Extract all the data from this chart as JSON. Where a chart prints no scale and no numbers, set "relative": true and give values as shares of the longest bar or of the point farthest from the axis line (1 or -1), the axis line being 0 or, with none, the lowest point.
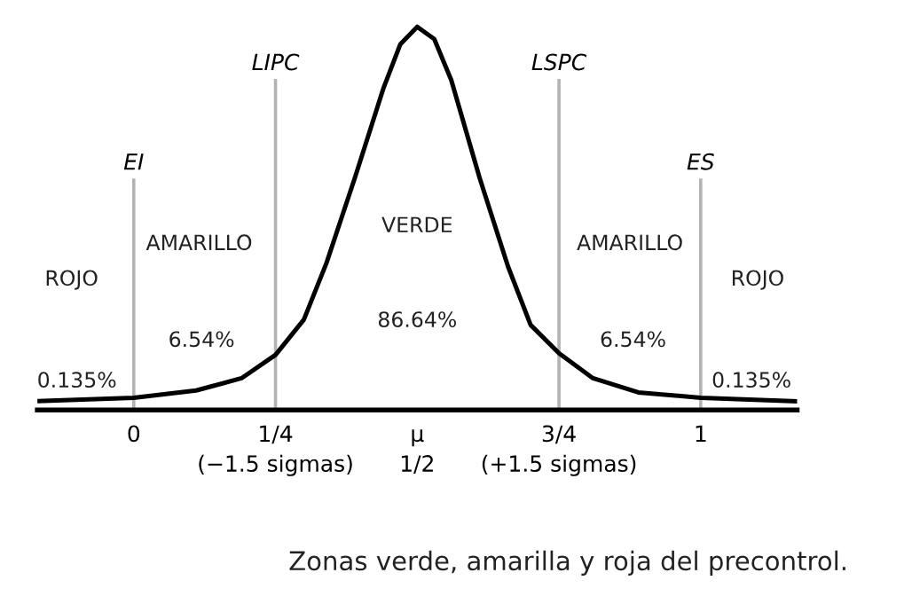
{
  "chart_data": {
    "type": "line",
    "relative": true,
    "x": [
      -0.17,
      0,
      0.11,
      0.19,
      0.25,
      0.3,
      0.34,
      0.39,
      0.44,
      0.47,
      0.5,
      0.53,
      0.56,
      0.61,
      0.66,
      0.7,
      0.75,
      0.81,
      0.89,
      1.0,
      1.17
    ],
    "series": [
      {
        "color": "#000000",
        "values": [
          0.023,
          0.032,
          0.051,
          0.083,
          0.144,
          0.236,
          0.384,
          0.606,
          0.838,
          0.954,
          1,
          0.968,
          0.861,
          0.606,
          0.375,
          0.222,
          0.148,
          0.083,
          0.046,
          0.032,
          0.023
        ]
      }
    ],
    "xlim": [
      -0.17,
      1.17
    ],
    "xticks": [
      {
        "value": 0,
        "label": "0"
      },
      {
        "value": 0.25,
        "label": "1/4\n(−1.5 sigmas)"
      },
      {
        "value": 0.5,
        "label": "μ\n1/2"
      },
      {
        "value": 0.75,
        "label": "3/4\n(+1.5 sigmas)"
      },
      {
        "value": 1,
        "label": "1"
      }
    ],
    "tick_labels": "x",
    "grid": false,
    "legend": false,
    "marker": "none",
    "line_style": "solid",
    "ref_lines": [
      {
        "axis": "x",
        "value": 0,
        "label": "EI",
        "color": "#b3b3b3"
      },
      {
        "axis": "x",
        "value": 0.25,
        "label": "LIPC",
        "color": "#b3b3b3"
      },
      {
        "axis": "x",
        "value": 0.75,
        "label": "LSPC",
        "color": "#b3b3b3"
      },
      {
        "axis": "x",
        "value": 1,
        "label": "ES",
        "color": "#b3b3b3"
      }
    ],
    "annotations": [
      "ROJO",
      "AMARILLO",
      "VERDE",
      "AMARILLO",
      "ROJO",
      "0.135%",
      "6.54%",
      "86.64%",
      "6.54%",
      "0.135%",
      "Zonas verde, amarilla y roja del precontrol."
    ]
  }
}
